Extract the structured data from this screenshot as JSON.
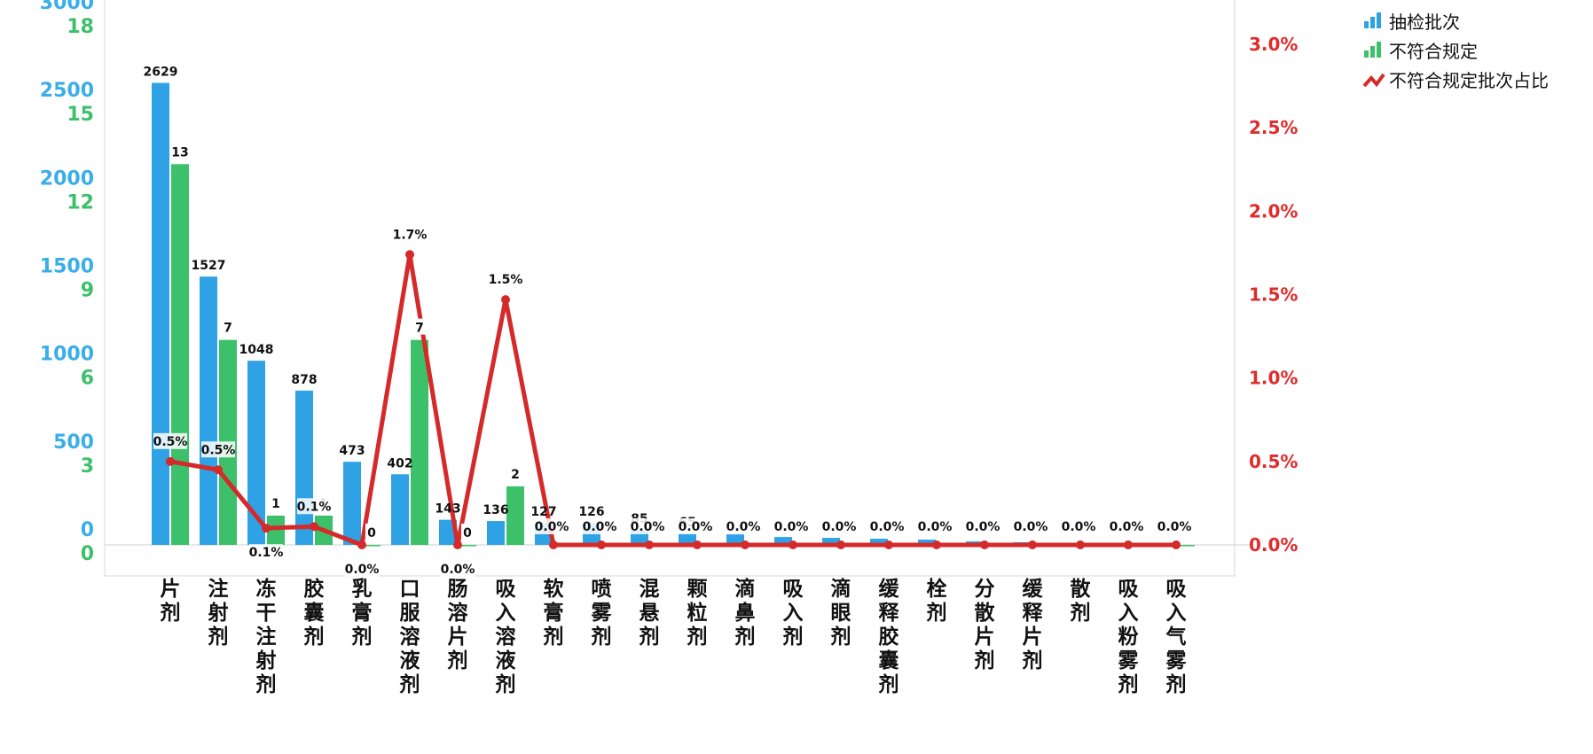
{
  "colors": {
    "inspected": "#2fa2e6",
    "nonconforming": "#3cc06a",
    "ratio": "#d42a2a",
    "left_axis_a": "#3aaee8",
    "left_axis_b": "#3cc06a",
    "right_axis": "#e02b2b"
  },
  "legend": [
    {
      "label": "抽检批次",
      "icon": "bar-icon-blue"
    },
    {
      "label": "不符合规定",
      "icon": "bar-icon-green"
    },
    {
      "label": "不符合规定批次占比",
      "icon": "line-icon-red"
    }
  ],
  "chart_data": {
    "type": "bar",
    "title": "",
    "categories": [
      "片剂",
      "注射剂",
      "冻干注射剂",
      "胶囊剂",
      "乳膏剂",
      "口服溶液剂",
      "肠溶片剂",
      "吸入溶液剂",
      "软膏剂",
      "喷雾剂",
      "混悬剂",
      "颗粒剂",
      "滴鼻剂",
      "吸入剂",
      "滴眼剂",
      "缓释胶囊剂",
      "栓剂",
      "分散片剂",
      "缓释片剂",
      "散剂",
      "吸入粉雾剂",
      "吸入气雾剂"
    ],
    "series": [
      {
        "name": "抽检批次",
        "type": "bar",
        "axis": "left_a",
        "values": [
          2629,
          1527,
          1048,
          878,
          473,
          402,
          143,
          136,
          127,
          126,
          85,
          65,
          60,
          45,
          40,
          35,
          30,
          20,
          15,
          10,
          5,
          5
        ],
        "labels": [
          "2629",
          "1527",
          "1048",
          "878",
          "473",
          "402",
          "143",
          "136",
          "127",
          "126",
          "85",
          "65",
          "",
          "",
          "",
          "",
          "",
          "",
          "",
          "",
          "",
          ""
        ]
      },
      {
        "name": "不符合规定",
        "type": "bar",
        "axis": "left_b",
        "values": [
          13,
          7,
          1,
          1,
          0,
          7,
          0,
          2,
          0,
          0,
          0,
          0,
          0,
          0,
          0,
          0,
          0,
          0,
          0,
          0,
          0,
          0
        ],
        "labels": [
          "13",
          "7",
          "1",
          "1",
          "0",
          "7",
          "0",
          "2",
          "",
          "",
          "",
          "",
          "",
          "",
          "",
          "",
          "",
          "",
          "",
          "",
          "",
          ""
        ]
      },
      {
        "name": "不符合规定批次占比",
        "type": "line",
        "axis": "right",
        "values": [
          0.5,
          0.45,
          0.1,
          0.11,
          0.0,
          1.74,
          0.0,
          1.47,
          0.0,
          0.0,
          0.0,
          0.0,
          0.0,
          0.0,
          0.0,
          0.0,
          0.0,
          0.0,
          0.0,
          0.0,
          0.0,
          0.0
        ],
        "labels": [
          "0.5%",
          "0.5%",
          "0.1%",
          "0.1%",
          "0.0%",
          "1.7%",
          "0.0%",
          "1.5%",
          "0.0%",
          "0.0%",
          "0.0%",
          "0.0%",
          "0.0%",
          "0.0%",
          "0.0%",
          "0.0%",
          "0.0%",
          "0.0%",
          "0.0%",
          "0.0%",
          "0.0%",
          "0.0%"
        ]
      }
    ],
    "left_axis_a": {
      "ylim": [
        0,
        3000
      ],
      "ticks": [
        "0",
        "500",
        "1000",
        "1500",
        "2000",
        "2500",
        "3000"
      ]
    },
    "left_axis_b": {
      "ylim": [
        0,
        18
      ],
      "ticks": [
        "0",
        "3",
        "6",
        "9",
        "12",
        "15",
        "18"
      ]
    },
    "right_axis": {
      "ylim": [
        0,
        3.0
      ],
      "ticks": [
        "0.0%",
        "0.5%",
        "1.0%",
        "1.5%",
        "2.0%",
        "2.5%",
        "3.0%"
      ]
    },
    "legend_position": "top-right",
    "grid": false
  }
}
